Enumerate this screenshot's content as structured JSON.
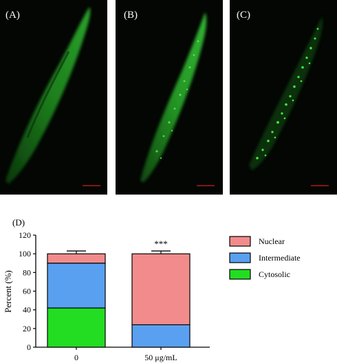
{
  "panels": [
    {
      "label": "(A)",
      "pattern": "diffuse"
    },
    {
      "label": "(B)",
      "pattern": "punctate"
    },
    {
      "label": "(C)",
      "pattern": "nuclear"
    }
  ],
  "colors": {
    "worm_green": "#2fd12f",
    "scale_bar": "#d02020",
    "nuclear": "#f28c8c",
    "intermediate": "#5aa0f0",
    "cytosolic": "#22dd22"
  },
  "chart_data": {
    "type": "bar",
    "stacked": true,
    "panel_label": "(D)",
    "categories": [
      "0",
      "50 μg/mL"
    ],
    "ylabel": "Percent (%)",
    "ylim": [
      0,
      120
    ],
    "yticks": [
      0,
      20,
      40,
      60,
      80,
      100,
      120
    ],
    "series": [
      {
        "name": "Cytosolic",
        "color": "#22dd22",
        "values": [
          42,
          0
        ],
        "errors": [
          5,
          0
        ]
      },
      {
        "name": "Intermediate",
        "color": "#5aa0f0",
        "values": [
          48,
          24
        ],
        "errors": [
          5,
          2
        ]
      },
      {
        "name": "Nuclear",
        "color": "#f28c8c",
        "values": [
          10,
          76
        ],
        "errors": [
          3,
          3
        ]
      }
    ],
    "annotations": [
      {
        "category": "50 μg/mL",
        "text": "***"
      }
    ],
    "legend_order": [
      "Nuclear",
      "Intermediate",
      "Cytosolic"
    ],
    "legend_position": "right"
  }
}
